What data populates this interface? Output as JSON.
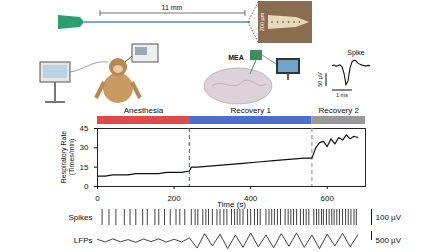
{
  "probe": {
    "length_label": "11 mm",
    "width_label": "200 µm"
  },
  "setup": {
    "array_label": "MEA"
  },
  "spike_waveform": {
    "label": "Spike",
    "x": [
      0,
      0.1,
      0.2,
      0.3,
      0.4,
      0.5,
      0.6,
      0.7,
      0.8,
      0.9,
      1,
      1.1,
      1.2,
      1.3,
      1.4,
      1.5,
      1.6,
      1.7,
      1.8,
      1.9
    ],
    "values": [
      0,
      2,
      -2,
      0,
      3,
      -5,
      -30,
      -75,
      -60,
      -10,
      15,
      22,
      18,
      10,
      5,
      2,
      0,
      -2,
      1,
      0
    ],
    "ylim": [
      -80,
      30
    ],
    "voltage_scale": {
      "value": 50,
      "label": "50 µV"
    },
    "time_scale": {
      "value": 1,
      "label": "1 ms"
    }
  },
  "chart_data": {
    "type": "line",
    "x_label": "Time (s)",
    "y_label": "Respiratory Rate (Times/min)",
    "x": [
      0,
      20,
      40,
      60,
      80,
      100,
      120,
      140,
      160,
      180,
      200,
      220,
      240,
      245,
      260,
      300,
      340,
      380,
      420,
      460,
      500,
      540,
      560,
      570,
      580,
      590,
      600,
      610,
      620,
      630,
      640,
      650,
      660,
      670,
      680
    ],
    "values": [
      8,
      8,
      9,
      9,
      9,
      10,
      10,
      10,
      10,
      11,
      11,
      11,
      12,
      15,
      15,
      16,
      17,
      18,
      19,
      20,
      21,
      22,
      22,
      30,
      34,
      35,
      31,
      37,
      33,
      38,
      36,
      40,
      37,
      39,
      38
    ],
    "color": "#111111",
    "xlim": [
      0,
      700
    ],
    "xticks": [
      0,
      200,
      400,
      600
    ],
    "ylim": [
      0,
      45
    ],
    "yticks": [
      0,
      15,
      30,
      45
    ],
    "phases": [
      {
        "name": "Anesthesia",
        "start": 0,
        "end": 240,
        "color": "#e04a4a"
      },
      {
        "name": "Recovery 1",
        "start": 240,
        "end": 560,
        "color": "#4a6fd0"
      },
      {
        "name": "Recovery 2",
        "start": 560,
        "end": 700,
        "color": "#999999"
      }
    ]
  },
  "recordings": {
    "spikes": {
      "label": "Spikes",
      "scale_bar": "100 µV",
      "times": [
        12,
        30,
        48,
        70,
        85,
        100,
        118,
        130,
        150,
        160,
        175,
        190,
        205,
        215,
        228,
        245,
        255,
        262,
        275,
        283,
        290,
        300,
        312,
        320,
        330,
        338,
        350,
        358,
        365,
        372,
        380,
        392,
        400,
        410,
        418,
        425,
        440,
        448,
        455,
        462,
        470,
        478,
        490,
        498,
        505,
        512,
        520,
        530,
        538,
        545,
        552,
        565,
        572,
        578,
        585,
        590,
        598,
        605,
        612,
        618,
        625,
        632,
        640,
        648,
        655,
        662,
        670,
        676
      ]
    },
    "lfp": {
      "label": "LFPs",
      "scale_bar": {
        "value": 500,
        "label": "500 µV"
      },
      "ylim": [
        -500,
        500
      ],
      "x": [
        0,
        20,
        40,
        60,
        80,
        100,
        120,
        140,
        160,
        180,
        200,
        220,
        240,
        260,
        280,
        300,
        320,
        340,
        360,
        380,
        400,
        420,
        440,
        460,
        480,
        500,
        520,
        540,
        560,
        580,
        600,
        620,
        640,
        660,
        680
      ],
      "values": [
        60,
        -80,
        90,
        -70,
        50,
        -100,
        80,
        -60,
        90,
        -90,
        70,
        -80,
        150,
        -420,
        380,
        -300,
        350,
        -450,
        300,
        -380,
        420,
        -350,
        300,
        -400,
        380,
        -320,
        420,
        -380,
        300,
        -450,
        350,
        -300,
        400,
        -350,
        320
      ]
    }
  }
}
